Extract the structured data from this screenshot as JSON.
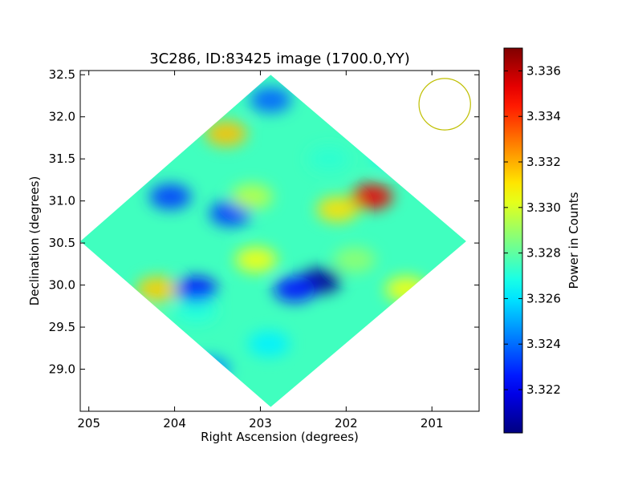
{
  "chart_data": {
    "type": "heatmap",
    "title": "3C286, ID:83425 image (1700.0,YY)",
    "xlabel": "Right Ascension (degrees)",
    "ylabel": "Declination (degrees)",
    "colorbar_label": "Power in Counts",
    "colormap": "jet",
    "xlim": [
      205.1,
      200.45
    ],
    "ylim": [
      28.5,
      32.55
    ],
    "x_inverted": true,
    "x_ticks": [
      205,
      204,
      203,
      202,
      201
    ],
    "y_ticks": [
      29.0,
      29.5,
      30.0,
      30.5,
      31.0,
      31.5,
      32.0,
      32.5
    ],
    "x_tick_labels": [
      "205",
      "204",
      "203",
      "202",
      "201"
    ],
    "y_tick_labels": [
      "29.0",
      "29.5",
      "30.0",
      "30.5",
      "31.0",
      "31.5",
      "32.0",
      "32.5"
    ],
    "colorbar_range": [
      3.3201,
      3.337
    ],
    "colorbar_ticks": [
      3.322,
      3.324,
      3.326,
      3.328,
      3.33,
      3.332,
      3.334,
      3.336
    ],
    "colorbar_tick_labels": [
      "3.322",
      "3.324",
      "3.326",
      "3.328",
      "3.330",
      "3.332",
      "3.334",
      "3.336"
    ],
    "image_footprint": {
      "shape": "diamond",
      "center_ra": 202.88,
      "center_dec": 30.52,
      "vertices": [
        [
          202.88,
          32.5
        ],
        [
          200.6,
          30.52
        ],
        [
          202.88,
          28.55
        ],
        [
          205.1,
          30.52
        ]
      ]
    },
    "background_level": 3.3275,
    "features": [
      {
        "ra": 201.7,
        "dec": 31.05,
        "value": 3.3352
      },
      {
        "ra": 202.1,
        "dec": 30.9,
        "value": 3.3312
      },
      {
        "ra": 202.3,
        "dec": 30.05,
        "value": 3.3205
      },
      {
        "ra": 202.6,
        "dec": 29.95,
        "value": 3.3225
      },
      {
        "ra": 203.05,
        "dec": 30.3,
        "value": 3.3305
      },
      {
        "ra": 203.35,
        "dec": 30.85,
        "value": 3.3232
      },
      {
        "ra": 204.05,
        "dec": 31.05,
        "value": 3.3232
      },
      {
        "ra": 203.1,
        "dec": 31.05,
        "value": 3.3295
      },
      {
        "ra": 202.2,
        "dec": 31.5,
        "value": 3.3272
      },
      {
        "ra": 201.9,
        "dec": 30.3,
        "value": 3.3288
      },
      {
        "ra": 203.75,
        "dec": 29.7,
        "value": 3.327
      },
      {
        "ra": 202.9,
        "dec": 29.3,
        "value": 3.3262
      },
      {
        "ra": 202.88,
        "dec": 32.2,
        "value": 3.3238
      },
      {
        "ra": 203.4,
        "dec": 31.8,
        "value": 3.3317
      },
      {
        "ra": 204.4,
        "dec": 29.6,
        "value": 3.3285
      },
      {
        "ra": 201.3,
        "dec": 29.95,
        "value": 3.3305
      },
      {
        "ra": 204.2,
        "dec": 29.95,
        "value": 3.3315
      },
      {
        "ra": 203.75,
        "dec": 29.95,
        "value": 3.3225
      },
      {
        "ra": 203.6,
        "dec": 29.0,
        "value": 3.3245
      },
      {
        "ra": 201.45,
        "dec": 31.55,
        "value": 3.3262
      }
    ],
    "beam_marker": {
      "shape": "circle",
      "ra": 200.85,
      "dec": 32.15,
      "radius_deg": 0.3,
      "color": "#bfbf00"
    },
    "grid": false
  }
}
